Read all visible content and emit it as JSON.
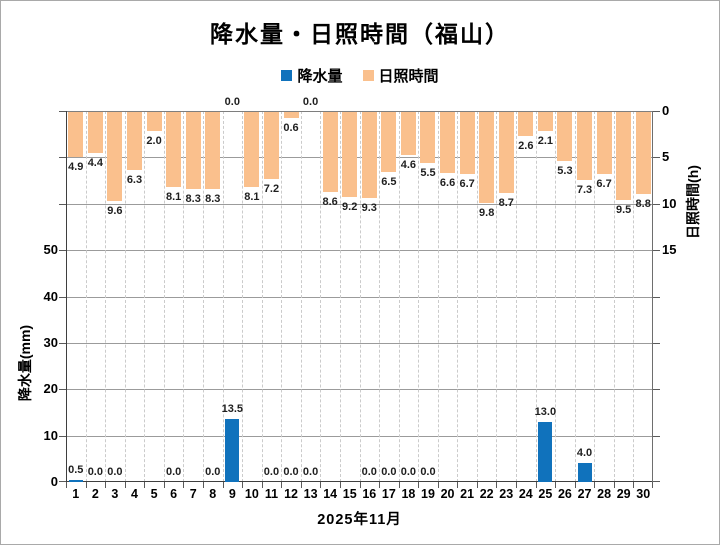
{
  "title": "降水量・日照時間（福山）",
  "legend": [
    {
      "label": "降水量",
      "color": "#1072BC"
    },
    {
      "label": "日照時間",
      "color": "#FAC08D"
    }
  ],
  "left_axis": {
    "title": "降水量(mm)",
    "ticks": [
      0,
      10,
      20,
      30,
      40,
      50
    ]
  },
  "right_axis": {
    "title": "日照時間(h)",
    "ticks": [
      0,
      5,
      10,
      15
    ]
  },
  "x_axis": {
    "title": "2025年11月"
  },
  "chart_data": {
    "type": "bar",
    "title": "降水量・日照時間（福山）",
    "categories": [
      1,
      2,
      3,
      4,
      5,
      6,
      7,
      8,
      9,
      10,
      11,
      12,
      13,
      14,
      15,
      16,
      17,
      18,
      19,
      20,
      21,
      22,
      23,
      24,
      25,
      26,
      27,
      28,
      29,
      30
    ],
    "xlabel": "2025年11月",
    "grid": true,
    "legend_position": "top",
    "series": [
      {
        "name": "降水量",
        "axis": "left",
        "unit": "mm",
        "color": "#1072BC",
        "direction": "up",
        "axis_labeled_range": [
          0,
          50
        ],
        "axis_full_range": [
          0,
          80
        ],
        "values": [
          0.5,
          0.0,
          0.0,
          null,
          null,
          0.0,
          null,
          0.0,
          13.5,
          null,
          0.0,
          0.0,
          0.0,
          null,
          null,
          0.0,
          0.0,
          0.0,
          0.0,
          null,
          null,
          null,
          null,
          null,
          13.0,
          null,
          4.0,
          null,
          null,
          null
        ]
      },
      {
        "name": "日照時間",
        "axis": "right",
        "unit": "h",
        "color": "#FAC08D",
        "direction": "down-from-top",
        "axis_labeled_range": [
          0,
          15
        ],
        "axis_full_range": [
          0,
          40
        ],
        "values": [
          4.9,
          4.4,
          9.6,
          6.3,
          2.0,
          8.1,
          8.3,
          8.3,
          0.0,
          8.1,
          7.2,
          0.6,
          0.0,
          8.6,
          9.2,
          9.3,
          6.5,
          4.6,
          5.5,
          6.6,
          6.7,
          9.8,
          8.7,
          2.6,
          2.1,
          5.3,
          7.3,
          6.7,
          9.5,
          8.8
        ]
      }
    ]
  }
}
